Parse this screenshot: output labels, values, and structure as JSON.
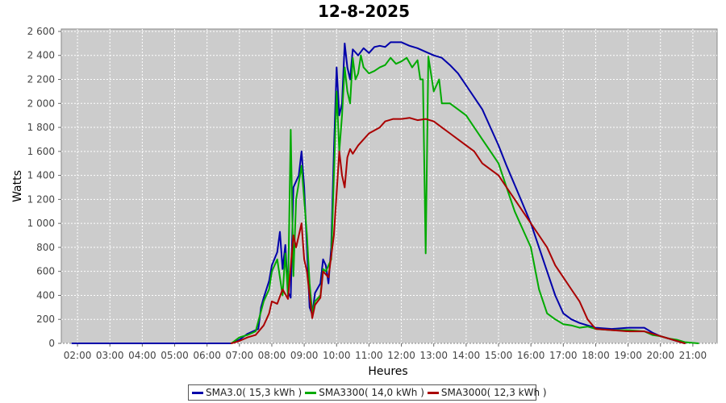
{
  "chart_data": {
    "type": "line",
    "title": "12-8-2025",
    "xlabel": "Heures",
    "ylabel": "Watts",
    "x_ticks": [
      "02:00",
      "03:00",
      "04:00",
      "05:00",
      "06:00",
      "07:00",
      "08:00",
      "09:00",
      "10:00",
      "11:00",
      "12:00",
      "13:00",
      "14:00",
      "15:00",
      "16:00",
      "17:00",
      "18:00",
      "19:00",
      "20:00",
      "21:00"
    ],
    "xlim": [
      "01:30",
      "21:45"
    ],
    "y_ticks": [
      "0",
      "200",
      "400",
      "600",
      "800",
      "1 000",
      "1 200",
      "1 400",
      "1 600",
      "1 800",
      "2 000",
      "2 200",
      "2 400",
      "2 600"
    ],
    "ylim": [
      0,
      2620
    ],
    "grid": true,
    "background": "#cccccc",
    "legend_position": "bottom",
    "series": [
      {
        "name": "SMA3.0( 15,3 kWh )",
        "color": "#0000aa",
        "points": [
          [
            "01:50",
            0
          ],
          [
            "06:45",
            0
          ],
          [
            "07:00",
            30
          ],
          [
            "07:15",
            80
          ],
          [
            "07:30",
            110
          ],
          [
            "07:35",
            120
          ],
          [
            "07:40",
            300
          ],
          [
            "07:45",
            380
          ],
          [
            "07:55",
            520
          ],
          [
            "08:00",
            650
          ],
          [
            "08:10",
            760
          ],
          [
            "08:15",
            930
          ],
          [
            "08:20",
            620
          ],
          [
            "08:25",
            820
          ],
          [
            "08:30",
            430
          ],
          [
            "08:35",
            380
          ],
          [
            "08:40",
            1300
          ],
          [
            "08:50",
            1400
          ],
          [
            "08:55",
            1600
          ],
          [
            "09:00",
            1300
          ],
          [
            "09:05",
            800
          ],
          [
            "09:10",
            300
          ],
          [
            "09:15",
            240
          ],
          [
            "09:20",
            420
          ],
          [
            "09:30",
            500
          ],
          [
            "09:35",
            700
          ],
          [
            "09:40",
            650
          ],
          [
            "09:45",
            500
          ],
          [
            "09:50",
            800
          ],
          [
            "09:55",
            1600
          ],
          [
            "10:00",
            2300
          ],
          [
            "10:05",
            1900
          ],
          [
            "10:10",
            2000
          ],
          [
            "10:15",
            2500
          ],
          [
            "10:20",
            2300
          ],
          [
            "10:25",
            2200
          ],
          [
            "10:30",
            2450
          ],
          [
            "10:40",
            2400
          ],
          [
            "10:50",
            2460
          ],
          [
            "11:00",
            2420
          ],
          [
            "11:10",
            2470
          ],
          [
            "11:20",
            2480
          ],
          [
            "11:30",
            2470
          ],
          [
            "11:40",
            2510
          ],
          [
            "12:00",
            2510
          ],
          [
            "12:15",
            2480
          ],
          [
            "12:30",
            2460
          ],
          [
            "12:45",
            2430
          ],
          [
            "13:00",
            2400
          ],
          [
            "13:15",
            2380
          ],
          [
            "13:30",
            2320
          ],
          [
            "13:45",
            2250
          ],
          [
            "14:00",
            2150
          ],
          [
            "14:15",
            2050
          ],
          [
            "14:30",
            1950
          ],
          [
            "14:45",
            1800
          ],
          [
            "15:00",
            1650
          ],
          [
            "15:15",
            1480
          ],
          [
            "15:30",
            1320
          ],
          [
            "15:45",
            1160
          ],
          [
            "16:00",
            1000
          ],
          [
            "16:15",
            800
          ],
          [
            "16:30",
            600
          ],
          [
            "16:45",
            400
          ],
          [
            "17:00",
            250
          ],
          [
            "17:15",
            200
          ],
          [
            "17:30",
            170
          ],
          [
            "17:45",
            150
          ],
          [
            "18:00",
            130
          ],
          [
            "18:30",
            120
          ],
          [
            "19:00",
            130
          ],
          [
            "19:30",
            130
          ],
          [
            "19:45",
            90
          ],
          [
            "20:00",
            60
          ],
          [
            "20:15",
            40
          ],
          [
            "20:30",
            20
          ],
          [
            "20:45",
            0
          ]
        ]
      },
      {
        "name": "SMA3300( 14,0 kWh )",
        "color": "#00aa00",
        "points": [
          [
            "06:45",
            0
          ],
          [
            "07:00",
            50
          ],
          [
            "07:15",
            70
          ],
          [
            "07:30",
            100
          ],
          [
            "07:45",
            350
          ],
          [
            "07:55",
            450
          ],
          [
            "08:00",
            600
          ],
          [
            "08:10",
            700
          ],
          [
            "08:20",
            400
          ],
          [
            "08:25",
            750
          ],
          [
            "08:30",
            400
          ],
          [
            "08:35",
            1780
          ],
          [
            "08:40",
            560
          ],
          [
            "08:45",
            1200
          ],
          [
            "08:55",
            1480
          ],
          [
            "09:00",
            1200
          ],
          [
            "09:05",
            900
          ],
          [
            "09:10",
            500
          ],
          [
            "09:15",
            250
          ],
          [
            "09:20",
            350
          ],
          [
            "09:30",
            400
          ],
          [
            "09:35",
            620
          ],
          [
            "09:40",
            600
          ],
          [
            "09:50",
            700
          ],
          [
            "09:55",
            1400
          ],
          [
            "10:00",
            2100
          ],
          [
            "10:05",
            1600
          ],
          [
            "10:10",
            1900
          ],
          [
            "10:15",
            2300
          ],
          [
            "10:20",
            2100
          ],
          [
            "10:25",
            2000
          ],
          [
            "10:30",
            2380
          ],
          [
            "10:35",
            2200
          ],
          [
            "10:40",
            2250
          ],
          [
            "10:45",
            2400
          ],
          [
            "10:50",
            2300
          ],
          [
            "11:00",
            2250
          ],
          [
            "11:10",
            2270
          ],
          [
            "11:20",
            2300
          ],
          [
            "11:30",
            2320
          ],
          [
            "11:40",
            2380
          ],
          [
            "11:50",
            2330
          ],
          [
            "12:00",
            2350
          ],
          [
            "12:10",
            2380
          ],
          [
            "12:20",
            2300
          ],
          [
            "12:30",
            2360
          ],
          [
            "12:35",
            2200
          ],
          [
            "12:40",
            2200
          ],
          [
            "12:45",
            750
          ],
          [
            "12:50",
            2390
          ],
          [
            "13:00",
            2100
          ],
          [
            "13:10",
            2200
          ],
          [
            "13:15",
            2000
          ],
          [
            "13:30",
            2000
          ],
          [
            "13:45",
            1950
          ],
          [
            "14:00",
            1900
          ],
          [
            "14:15",
            1800
          ],
          [
            "14:30",
            1700
          ],
          [
            "14:45",
            1600
          ],
          [
            "15:00",
            1500
          ],
          [
            "15:15",
            1300
          ],
          [
            "15:30",
            1100
          ],
          [
            "15:45",
            950
          ],
          [
            "16:00",
            800
          ],
          [
            "16:15",
            450
          ],
          [
            "16:30",
            250
          ],
          [
            "16:45",
            200
          ],
          [
            "17:00",
            160
          ],
          [
            "17:15",
            150
          ],
          [
            "17:30",
            130
          ],
          [
            "17:45",
            140
          ],
          [
            "18:00",
            120
          ],
          [
            "18:30",
            110
          ],
          [
            "19:00",
            110
          ],
          [
            "19:30",
            100
          ],
          [
            "19:45",
            70
          ],
          [
            "20:00",
            60
          ],
          [
            "20:15",
            40
          ],
          [
            "20:30",
            30
          ],
          [
            "20:45",
            10
          ],
          [
            "21:10",
            0
          ]
        ]
      },
      {
        "name": "SMA3000( 12,3 kWh )",
        "color": "#aa0000",
        "points": [
          [
            "06:45",
            0
          ],
          [
            "07:00",
            20
          ],
          [
            "07:15",
            50
          ],
          [
            "07:30",
            70
          ],
          [
            "07:45",
            150
          ],
          [
            "07:55",
            250
          ],
          [
            "08:00",
            350
          ],
          [
            "08:10",
            330
          ],
          [
            "08:20",
            450
          ],
          [
            "08:30",
            370
          ],
          [
            "08:40",
            900
          ],
          [
            "08:45",
            800
          ],
          [
            "08:55",
            1000
          ],
          [
            "09:00",
            700
          ],
          [
            "09:05",
            600
          ],
          [
            "09:10",
            400
          ],
          [
            "09:15",
            210
          ],
          [
            "09:20",
            320
          ],
          [
            "09:30",
            380
          ],
          [
            "09:35",
            600
          ],
          [
            "09:45",
            550
          ],
          [
            "09:55",
            900
          ],
          [
            "10:00",
            1250
          ],
          [
            "10:05",
            1600
          ],
          [
            "10:10",
            1400
          ],
          [
            "10:15",
            1300
          ],
          [
            "10:20",
            1550
          ],
          [
            "10:25",
            1620
          ],
          [
            "10:30",
            1580
          ],
          [
            "10:40",
            1650
          ],
          [
            "10:50",
            1700
          ],
          [
            "11:00",
            1750
          ],
          [
            "11:20",
            1800
          ],
          [
            "11:30",
            1850
          ],
          [
            "11:45",
            1870
          ],
          [
            "12:00",
            1870
          ],
          [
            "12:15",
            1880
          ],
          [
            "12:30",
            1860
          ],
          [
            "12:45",
            1870
          ],
          [
            "13:00",
            1850
          ],
          [
            "13:15",
            1800
          ],
          [
            "13:30",
            1750
          ],
          [
            "13:45",
            1700
          ],
          [
            "14:00",
            1650
          ],
          [
            "14:15",
            1600
          ],
          [
            "14:30",
            1500
          ],
          [
            "14:45",
            1450
          ],
          [
            "15:00",
            1400
          ],
          [
            "15:15",
            1300
          ],
          [
            "15:30",
            1200
          ],
          [
            "15:45",
            1100
          ],
          [
            "16:00",
            1000
          ],
          [
            "16:15",
            900
          ],
          [
            "16:30",
            800
          ],
          [
            "16:45",
            650
          ],
          [
            "17:00",
            550
          ],
          [
            "17:15",
            450
          ],
          [
            "17:30",
            350
          ],
          [
            "17:45",
            200
          ],
          [
            "18:00",
            120
          ],
          [
            "18:30",
            110
          ],
          [
            "19:00",
            100
          ],
          [
            "19:30",
            100
          ],
          [
            "19:45",
            80
          ],
          [
            "20:00",
            60
          ],
          [
            "20:15",
            40
          ],
          [
            "20:30",
            20
          ],
          [
            "20:45",
            0
          ]
        ]
      }
    ]
  }
}
